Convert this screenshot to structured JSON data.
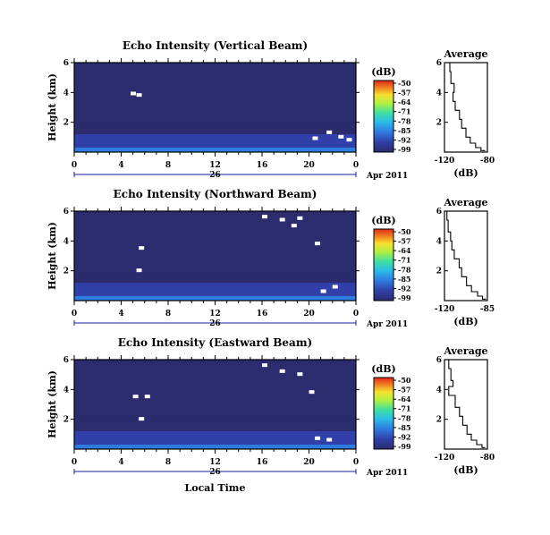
{
  "chart_data": [
    {
      "type": "heatmap",
      "title": "Echo Intensity (Vertical Beam)",
      "ylabel": "Height (km)",
      "yticks": [
        "2",
        "4",
        "6"
      ],
      "ylim": [
        0,
        6
      ],
      "xticks": [
        "0",
        "4",
        "8",
        "12",
        "16",
        "20",
        "0"
      ],
      "xlim": [
        0,
        24
      ],
      "day_label": "26",
      "date_label": "Apr 2011",
      "colorbar": {
        "label": "(dB)",
        "ticks": [
          "-50",
          "-57",
          "-64",
          "-71",
          "-78",
          "-85",
          "-92",
          "-99"
        ]
      },
      "bins": {
        "layers": [
          {
            "h": 0.3,
            "dB": -85
          },
          {
            "h": 0.6,
            "dB": -92
          },
          {
            "h": 1.2,
            "dB": -95
          },
          {
            "h": 1.9,
            "dB": -97
          },
          {
            "h": 6.0,
            "dB": -99
          }
        ],
        "white_patches": [
          {
            "t": 4.8,
            "h": 3.9
          },
          {
            "t": 5.3,
            "h": 3.8
          },
          {
            "t": 21.5,
            "h": 1.3
          },
          {
            "t": 22.5,
            "h": 1.0
          },
          {
            "t": 23.2,
            "h": 0.8
          },
          {
            "t": 20.3,
            "h": 0.9
          }
        ]
      },
      "average": {
        "title": "Average",
        "xlabel": "(dB)",
        "xticks": [
          "-120",
          "-80"
        ],
        "yticks": [
          "2",
          "4",
          "6"
        ],
        "profile": [
          {
            "dB": -115,
            "h": 6.0
          },
          {
            "dB": -114,
            "h": 5.4
          },
          {
            "dB": -111,
            "h": 4.6
          },
          {
            "dB": -112,
            "h": 4.0
          },
          {
            "dB": -110,
            "h": 3.4
          },
          {
            "dB": -106,
            "h": 2.8
          },
          {
            "dB": -104,
            "h": 2.2
          },
          {
            "dB": -100,
            "h": 1.6
          },
          {
            "dB": -96,
            "h": 1.0
          },
          {
            "dB": -91,
            "h": 0.6
          },
          {
            "dB": -86,
            "h": 0.3
          },
          {
            "dB": -82,
            "h": 0.1
          }
        ]
      }
    },
    {
      "type": "heatmap",
      "title": "Echo Intensity (Northward Beam)",
      "ylabel": "Height (km)",
      "yticks": [
        "2",
        "4",
        "6"
      ],
      "ylim": [
        0,
        6
      ],
      "xticks": [
        "0",
        "4",
        "8",
        "12",
        "16",
        "20",
        "0"
      ],
      "xlim": [
        0,
        24
      ],
      "day_label": "26",
      "date_label": "Apr 2011",
      "colorbar": {
        "label": "(dB)",
        "ticks": [
          "-50",
          "-57",
          "-64",
          "-71",
          "-78",
          "-85",
          "-92",
          "-99"
        ]
      },
      "bins": {
        "layers": [
          {
            "h": 0.3,
            "dB": -85
          },
          {
            "h": 0.6,
            "dB": -92
          },
          {
            "h": 1.2,
            "dB": -95
          },
          {
            "h": 1.9,
            "dB": -97
          },
          {
            "h": 6.0,
            "dB": -99
          }
        ],
        "white_patches": [
          {
            "t": 16.0,
            "h": 5.6
          },
          {
            "t": 17.5,
            "h": 5.4
          },
          {
            "t": 18.5,
            "h": 5.0
          },
          {
            "t": 19.0,
            "h": 5.5
          },
          {
            "t": 20.5,
            "h": 3.8
          },
          {
            "t": 5.5,
            "h": 3.5
          },
          {
            "t": 21.0,
            "h": 0.6
          },
          {
            "t": 22.0,
            "h": 0.9
          },
          {
            "t": 5.3,
            "h": 2.0
          }
        ]
      },
      "average": {
        "title": "Average",
        "xlabel": "(dB)",
        "xticks": [
          "-120",
          "-85"
        ],
        "yticks": [
          "2",
          "4",
          "6"
        ],
        "profile": [
          {
            "dB": -118,
            "h": 6.0
          },
          {
            "dB": -117,
            "h": 5.4
          },
          {
            "dB": -115,
            "h": 4.6
          },
          {
            "dB": -114,
            "h": 4.0
          },
          {
            "dB": -112,
            "h": 3.4
          },
          {
            "dB": -108,
            "h": 2.8
          },
          {
            "dB": -106,
            "h": 2.2
          },
          {
            "dB": -102,
            "h": 1.6
          },
          {
            "dB": -98,
            "h": 1.0
          },
          {
            "dB": -93,
            "h": 0.6
          },
          {
            "dB": -89,
            "h": 0.3
          },
          {
            "dB": -86,
            "h": 0.1
          }
        ]
      }
    },
    {
      "type": "heatmap",
      "title": "Echo Intensity (Eastward Beam)",
      "ylabel": "Height (km)",
      "yticks": [
        "2",
        "4",
        "6"
      ],
      "ylim": [
        0,
        6
      ],
      "xticks": [
        "0",
        "4",
        "8",
        "12",
        "16",
        "20",
        "0"
      ],
      "xlim": [
        0,
        24
      ],
      "day_label": "26",
      "date_label": "Apr 2011",
      "xlabel": "Local Time",
      "colorbar": {
        "label": "(dB)",
        "ticks": [
          "-50",
          "-57",
          "-64",
          "-71",
          "-78",
          "-85",
          "-92",
          "-99"
        ]
      },
      "bins": {
        "layers": [
          {
            "h": 0.3,
            "dB": -85
          },
          {
            "h": 0.6,
            "dB": -92
          },
          {
            "h": 1.2,
            "dB": -95
          },
          {
            "h": 1.9,
            "dB": -97
          },
          {
            "h": 6.0,
            "dB": -99
          }
        ],
        "white_patches": [
          {
            "t": 16.0,
            "h": 5.6
          },
          {
            "t": 17.5,
            "h": 5.2
          },
          {
            "t": 19.0,
            "h": 5.0
          },
          {
            "t": 20.0,
            "h": 3.8
          },
          {
            "t": 5.0,
            "h": 3.5
          },
          {
            "t": 6.0,
            "h": 3.5
          },
          {
            "t": 5.5,
            "h": 2.0
          },
          {
            "t": 20.5,
            "h": 0.7
          },
          {
            "t": 21.5,
            "h": 0.6
          }
        ]
      },
      "average": {
        "title": "Average",
        "xlabel": "(dB)",
        "xticks": [
          "-120",
          "-80"
        ],
        "yticks": [
          "2",
          "4",
          "6"
        ],
        "profile": [
          {
            "dB": -116,
            "h": 6.0
          },
          {
            "dB": -114,
            "h": 5.4
          },
          {
            "dB": -112,
            "h": 4.6
          },
          {
            "dB": -116,
            "h": 4.2
          },
          {
            "dB": -110,
            "h": 3.6
          },
          {
            "dB": -106,
            "h": 2.8
          },
          {
            "dB": -103,
            "h": 2.2
          },
          {
            "dB": -99,
            "h": 1.6
          },
          {
            "dB": -95,
            "h": 1.0
          },
          {
            "dB": -90,
            "h": 0.6
          },
          {
            "dB": -85,
            "h": 0.3
          },
          {
            "dB": -82,
            "h": 0.1
          }
        ]
      }
    }
  ],
  "colors": {
    "scale": [
      "#2b2b6e",
      "#3040a8",
      "#2f7be0",
      "#2bbbe8",
      "#40e0a0",
      "#b0f040",
      "#f8e030",
      "#f08020",
      "#e02818"
    ],
    "frame": "#000000",
    "date_axis": "#1a1aa0"
  }
}
